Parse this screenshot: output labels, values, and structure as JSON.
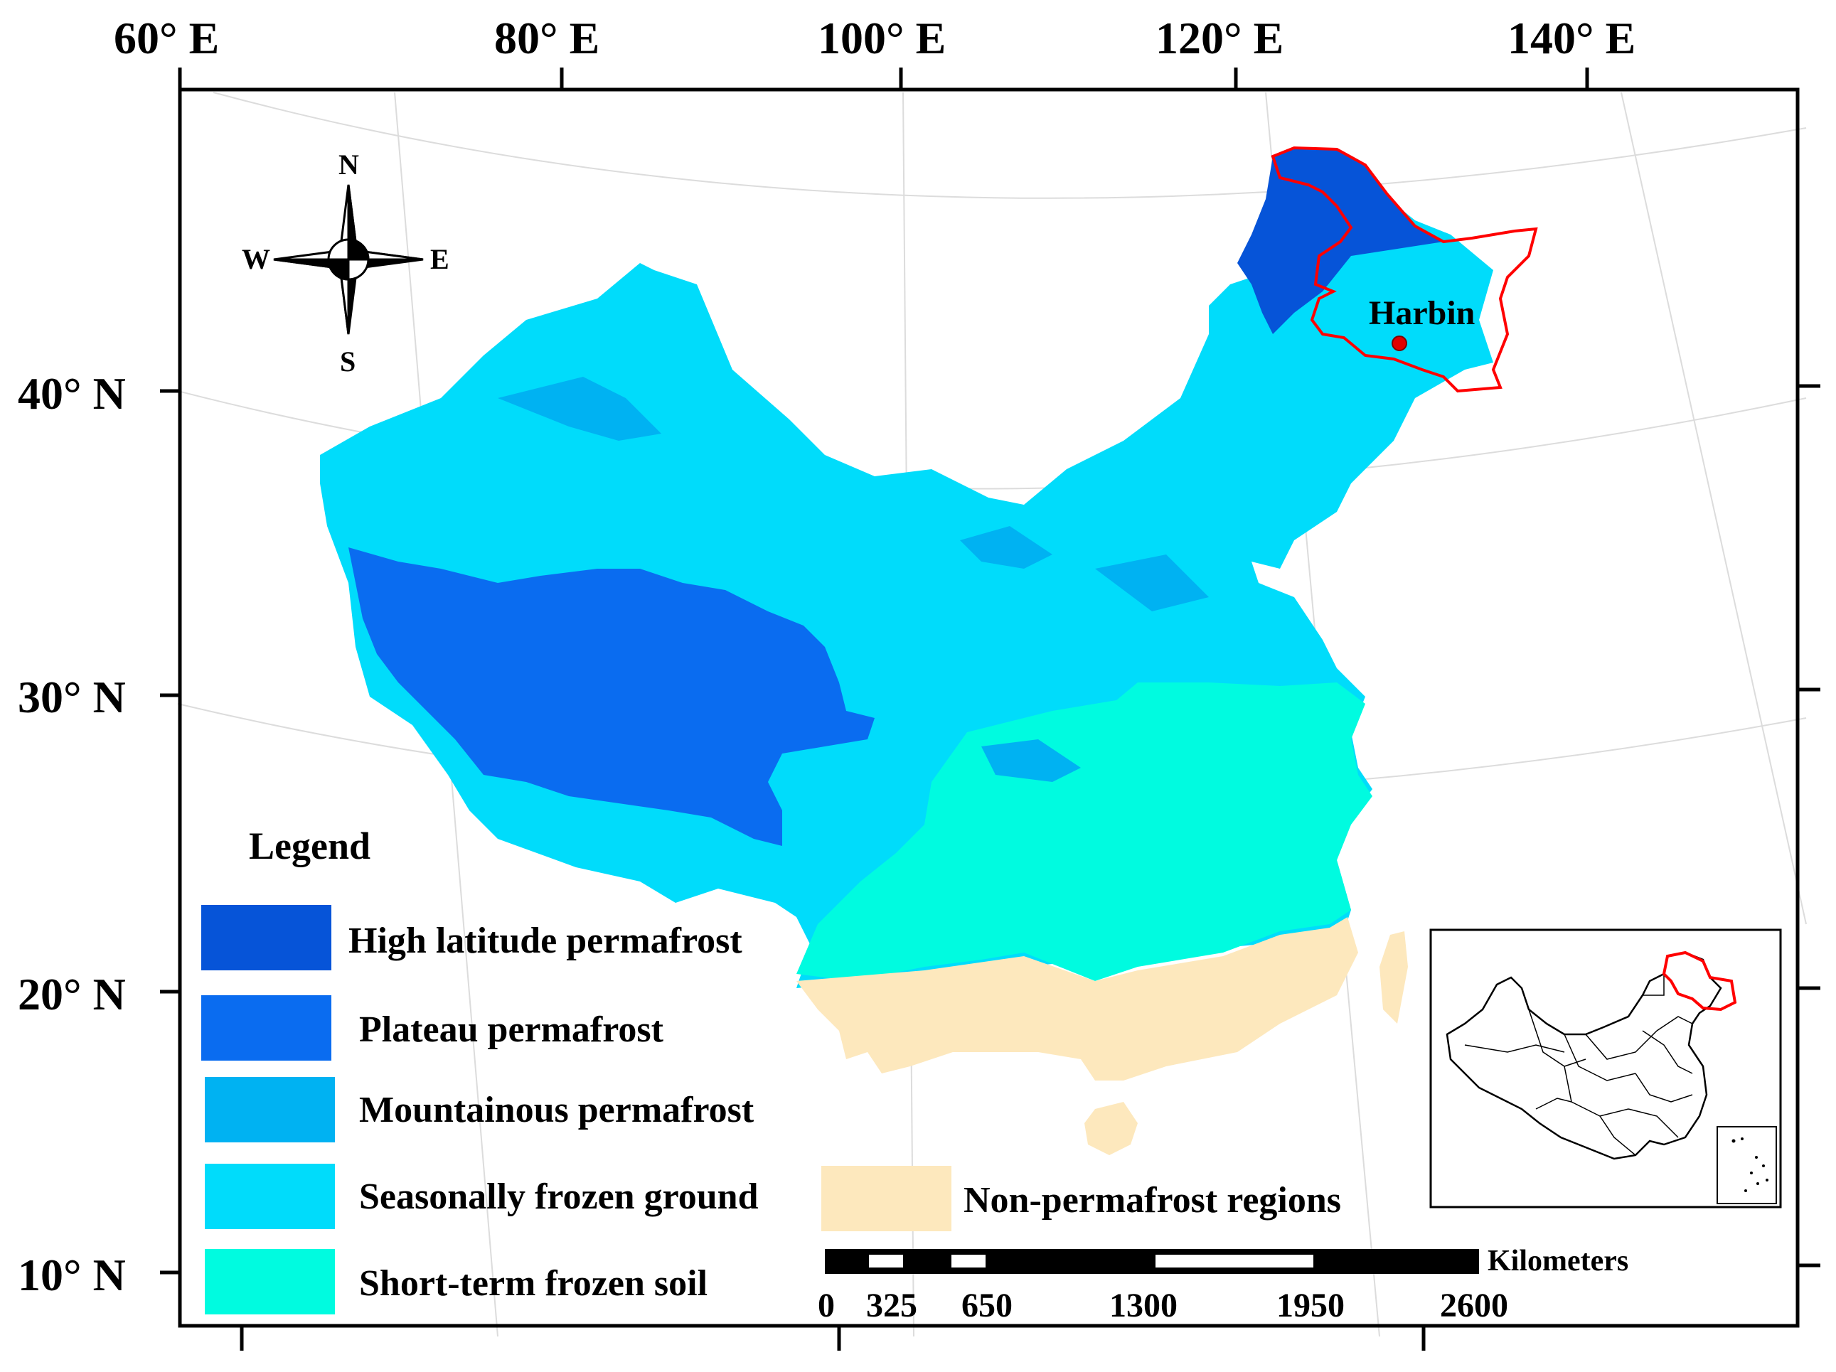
{
  "map": {
    "axes": {
      "longitude_labels": [
        "60° E",
        "80° E",
        "100° E",
        "120° E",
        "140° E"
      ],
      "latitude_labels": [
        "40° N",
        "30° N",
        "20° N",
        "10° N"
      ]
    },
    "compass": {
      "north": "N",
      "south": "S",
      "east": "E",
      "west": "W"
    },
    "city": {
      "name": "Harbin"
    },
    "legend": {
      "title": "Legend",
      "items": [
        {
          "label": "High latitude permafrost",
          "color": "#0654d8"
        },
        {
          "label": "Plateau permafrost",
          "color": "#0a6cf0"
        },
        {
          "label": "Mountainous permafrost",
          "color": "#00b2f2"
        },
        {
          "label": "Seasonally frozen ground",
          "color": "#00dcfb"
        },
        {
          "label": "Short-term frozen soil",
          "color": "#00fbe0"
        },
        {
          "label": "Non-permafrost regions",
          "color": "#fde8bd"
        }
      ]
    },
    "scale_bar": {
      "unit": "Kilometers",
      "ticks": [
        "0",
        "325",
        "650",
        "1300",
        "1950",
        "2600"
      ]
    },
    "highlight_color": "#ff0000"
  }
}
